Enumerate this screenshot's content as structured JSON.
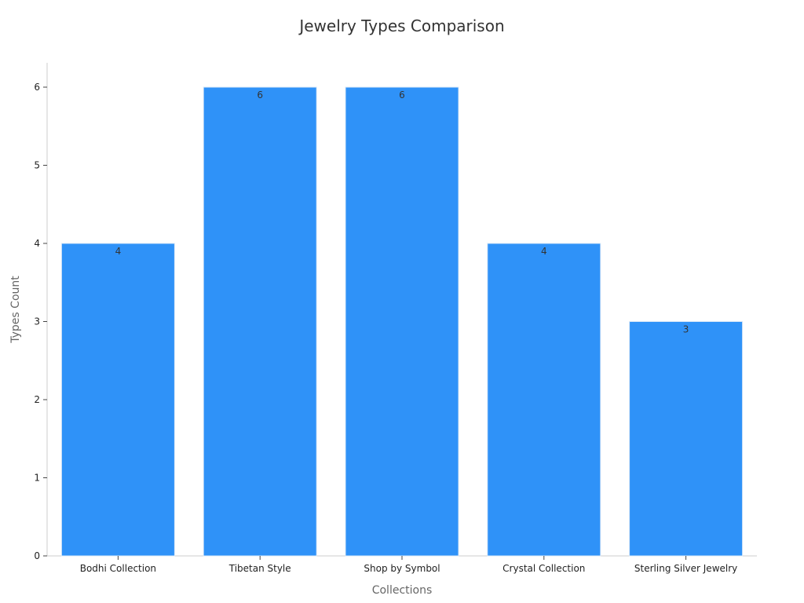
{
  "chart_data": {
    "type": "bar",
    "title": "Jewelry Types Comparison",
    "xlabel": "Collections",
    "ylabel": "Types Count",
    "categories": [
      "Bodhi Collection",
      "Tibetan Style",
      "Shop by Symbol",
      "Crystal Collection",
      "Sterling Silver Jewelry"
    ],
    "values": [
      4,
      6,
      6,
      4,
      3
    ],
    "data_labels": [
      "4",
      "6",
      "6",
      "4",
      "3"
    ],
    "yticks": [
      0,
      1,
      2,
      3,
      4,
      5,
      6
    ],
    "ytick_labels": [
      "0",
      "1",
      "2",
      "3",
      "4",
      "5",
      "6"
    ],
    "ylim": [
      0,
      6.3
    ],
    "bar_color": "#2f92f8",
    "grid": false,
    "legend": "none"
  }
}
